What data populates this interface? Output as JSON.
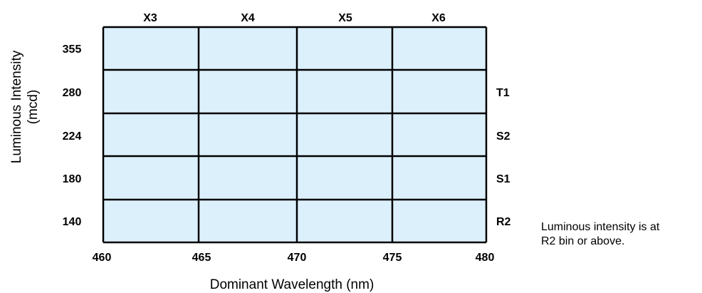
{
  "chart_data": {
    "type": "table",
    "columns": [
      "X3",
      "X4",
      "X5",
      "X6"
    ],
    "x_ticks": [
      "460",
      "465",
      "470",
      "475",
      "480"
    ],
    "y_ticks": [
      "355",
      "280",
      "224",
      "180",
      "140"
    ],
    "row_bins": [
      "T1",
      "S2",
      "S1",
      "R2"
    ],
    "xlabel": "Dominant Wavelength (nm)",
    "ylabel_line1": "Luminous Intensity",
    "ylabel_line2": "(mcd)",
    "note_line1": "Luminous intensity is at",
    "note_line2": "R2 bin or above.",
    "cell_fill": "#dcf0fc",
    "grid_color": "#000000"
  }
}
